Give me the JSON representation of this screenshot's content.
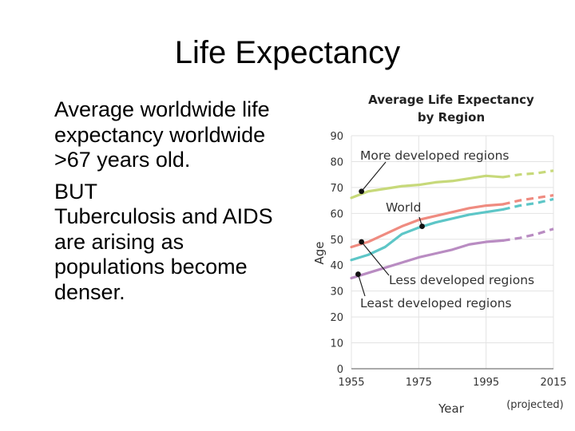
{
  "slide": {
    "title": "Life Expectancy",
    "paragraphs": [
      "Average worldwide life expectancy worldwide >67 years old.",
      "BUT",
      "Tuberculosis and AIDS are arising as populations become denser."
    ]
  },
  "chart_data": {
    "type": "line",
    "title": "Average Life Expectancy by Region",
    "xlabel": "Year",
    "ylabel": "Age",
    "x_tick_labels": [
      "1955",
      "1975",
      "1995",
      "2015"
    ],
    "y_tick_labels": [
      "0",
      "10",
      "20",
      "30",
      "40",
      "50",
      "60",
      "70",
      "80",
      "90"
    ],
    "projected_label": "(projected)",
    "xlim": [
      1955,
      2015
    ],
    "ylim": [
      0,
      90
    ],
    "grid": true,
    "series": [
      {
        "name": "More developed regions",
        "color": "#c7d97a",
        "x": [
          1955,
          1960,
          1965,
          1970,
          1975,
          1980,
          1985,
          1990,
          1995,
          2000
        ],
        "y": [
          66,
          68.5,
          69.5,
          70.5,
          71,
          72,
          72.5,
          73.5,
          74.5,
          74
        ],
        "projected_x": [
          2000,
          2005,
          2010,
          2015
        ],
        "projected_y": [
          74,
          75,
          75.5,
          76.5
        ]
      },
      {
        "name": "World",
        "color": "#ef8b80",
        "x": [
          1955,
          1960,
          1965,
          1970,
          1975,
          1980,
          1985,
          1990,
          1995,
          2000
        ],
        "y": [
          47,
          49,
          52,
          55,
          57.5,
          59,
          60.5,
          62,
          63,
          63.5
        ],
        "projected_x": [
          2000,
          2005,
          2010,
          2015
        ],
        "projected_y": [
          63.5,
          65,
          66,
          67
        ]
      },
      {
        "name": "Less developed regions",
        "color": "#5dc6c7",
        "x": [
          1955,
          1960,
          1965,
          1970,
          1975,
          1980,
          1985,
          1990,
          1995,
          2000
        ],
        "y": [
          42,
          44,
          47,
          52,
          54.5,
          56.5,
          58,
          59.5,
          60.5,
          61.5
        ],
        "projected_x": [
          2000,
          2005,
          2010,
          2015
        ],
        "projected_y": [
          61.5,
          63,
          64,
          65.5
        ]
      },
      {
        "name": "Least developed regions",
        "color": "#b98cc2",
        "x": [
          1955,
          1960,
          1965,
          1970,
          1975,
          1980,
          1985,
          1990,
          1995,
          2000
        ],
        "y": [
          35,
          37,
          39,
          41,
          43,
          44.5,
          46,
          48,
          49,
          49.5
        ],
        "projected_x": [
          2000,
          2005,
          2010,
          2015
        ],
        "projected_y": [
          49.5,
          50.5,
          52,
          54
        ]
      }
    ],
    "annotations": [
      {
        "text": "More developed regions",
        "series": 0,
        "x": 1958,
        "y": 68.5
      },
      {
        "text": "World",
        "series": 1,
        "x": 1976,
        "y": 55
      },
      {
        "text": "Less developed regions",
        "series": 2,
        "x": 1958,
        "y": 49
      },
      {
        "text": "Least developed regions",
        "series": 3,
        "x": 1957,
        "y": 36.5
      }
    ]
  }
}
